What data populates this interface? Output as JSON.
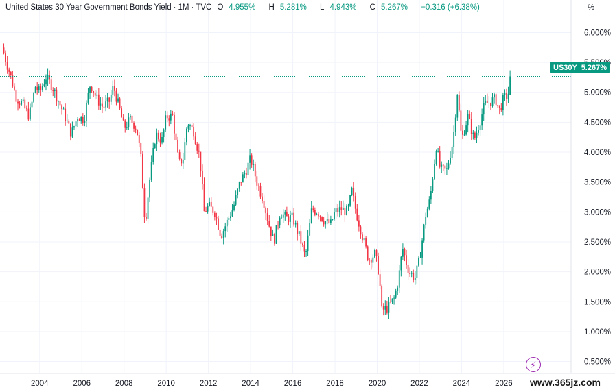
{
  "header": {
    "title": "United States 30 Year Government Bonds Yield",
    "interval": "1M",
    "source": "TVC",
    "open_label": "O",
    "open": "4.955%",
    "high_label": "H",
    "high": "5.281%",
    "low_label": "L",
    "low": "4.943%",
    "close_label": "C",
    "close": "5.267%",
    "change": "+0.316 (+6.38%)"
  },
  "scale_button": "%",
  "price_badge": {
    "symbol": "US30Y",
    "value": "5.267%"
  },
  "watermark": "www.365jz.com",
  "colors": {
    "up": "#089981",
    "down": "#f23645",
    "axis_text": "#131722",
    "grid": "#f0f3fa"
  },
  "chart_data": {
    "type": "candlestick",
    "title": "United States 30 Year Government Bonds Yield",
    "interval": "monthly",
    "x_range": [
      2002.25,
      2027.5
    ],
    "y_range": [
      0.3,
      6.2
    ],
    "y_ticks": [
      "6.000%",
      "5.500%",
      "5.000%",
      "4.500%",
      "4.000%",
      "3.500%",
      "3.000%",
      "2.500%",
      "2.000%",
      "1.500%",
      "1.000%",
      "0.500%"
    ],
    "y_tick_values": [
      6.0,
      5.5,
      5.0,
      4.5,
      4.0,
      3.5,
      3.0,
      2.5,
      2.0,
      1.5,
      1.0,
      0.5
    ],
    "x_ticks": [
      "2004",
      "2006",
      "2008",
      "2010",
      "2012",
      "2014",
      "2016",
      "2018",
      "2020",
      "2022",
      "2024",
      "2026"
    ],
    "x_tick_values": [
      2004,
      2006,
      2008,
      2010,
      2012,
      2014,
      2016,
      2018,
      2020,
      2022,
      2024,
      2026
    ],
    "last_close": 5.267,
    "close_path": [
      [
        2002.3,
        5.65
      ],
      [
        2002.6,
        5.3
      ],
      [
        2002.9,
        4.9
      ],
      [
        2003.2,
        4.8
      ],
      [
        2003.5,
        4.6
      ],
      [
        2003.8,
        5.1
      ],
      [
        2004.0,
        5.0
      ],
      [
        2004.3,
        5.25
      ],
      [
        2004.6,
        5.1
      ],
      [
        2004.9,
        4.85
      ],
      [
        2005.2,
        4.6
      ],
      [
        2005.5,
        4.3
      ],
      [
        2005.8,
        4.6
      ],
      [
        2006.1,
        4.55
      ],
      [
        2006.4,
        5.15
      ],
      [
        2006.7,
        4.9
      ],
      [
        2007.0,
        4.75
      ],
      [
        2007.3,
        4.85
      ],
      [
        2007.5,
        5.1
      ],
      [
        2007.8,
        4.7
      ],
      [
        2008.0,
        4.4
      ],
      [
        2008.3,
        4.55
      ],
      [
        2008.6,
        4.4
      ],
      [
        2008.8,
        3.9
      ],
      [
        2009.0,
        2.8
      ],
      [
        2009.2,
        3.5
      ],
      [
        2009.5,
        4.3
      ],
      [
        2009.8,
        4.2
      ],
      [
        2010.0,
        4.6
      ],
      [
        2010.3,
        4.6
      ],
      [
        2010.6,
        3.8
      ],
      [
        2010.8,
        3.9
      ],
      [
        2011.0,
        4.5
      ],
      [
        2011.3,
        4.35
      ],
      [
        2011.6,
        3.9
      ],
      [
        2011.8,
        3.0
      ],
      [
        2012.0,
        3.1
      ],
      [
        2012.3,
        3.0
      ],
      [
        2012.6,
        2.6
      ],
      [
        2012.9,
        2.85
      ],
      [
        2013.2,
        3.1
      ],
      [
        2013.5,
        3.5
      ],
      [
        2013.8,
        3.7
      ],
      [
        2014.0,
        3.9
      ],
      [
        2014.3,
        3.5
      ],
      [
        2014.6,
        3.2
      ],
      [
        2014.9,
        2.75
      ],
      [
        2015.1,
        2.5
      ],
      [
        2015.4,
        3.0
      ],
      [
        2015.7,
        2.9
      ],
      [
        2016.0,
        2.9
      ],
      [
        2016.3,
        2.6
      ],
      [
        2016.6,
        2.25
      ],
      [
        2016.9,
        3.05
      ],
      [
        2017.2,
        3.0
      ],
      [
        2017.5,
        2.85
      ],
      [
        2017.8,
        2.8
      ],
      [
        2018.0,
        3.0
      ],
      [
        2018.3,
        3.05
      ],
      [
        2018.6,
        3.0
      ],
      [
        2018.8,
        3.35
      ],
      [
        2019.0,
        3.0
      ],
      [
        2019.3,
        2.6
      ],
      [
        2019.6,
        2.2
      ],
      [
        2019.9,
        2.3
      ],
      [
        2020.1,
        1.95
      ],
      [
        2020.2,
        1.35
      ],
      [
        2020.5,
        1.4
      ],
      [
        2020.8,
        1.55
      ],
      [
        2021.0,
        1.85
      ],
      [
        2021.2,
        2.4
      ],
      [
        2021.5,
        2.0
      ],
      [
        2021.8,
        1.9
      ],
      [
        2022.0,
        2.2
      ],
      [
        2022.3,
        2.95
      ],
      [
        2022.5,
        3.2
      ],
      [
        2022.8,
        4.1
      ],
      [
        2023.0,
        3.7
      ],
      [
        2023.3,
        3.7
      ],
      [
        2023.6,
        4.2
      ],
      [
        2023.8,
        5.0
      ],
      [
        2024.0,
        4.2
      ],
      [
        2024.3,
        4.6
      ],
      [
        2024.6,
        4.2
      ],
      [
        2024.9,
        4.55
      ],
      [
        2025.1,
        4.8
      ],
      [
        2025.4,
        4.85
      ],
      [
        2025.6,
        4.9
      ],
      [
        2025.8,
        4.7
      ],
      [
        2026.0,
        4.9
      ],
      [
        2026.2,
        4.95
      ],
      [
        2026.33,
        5.267
      ]
    ]
  }
}
